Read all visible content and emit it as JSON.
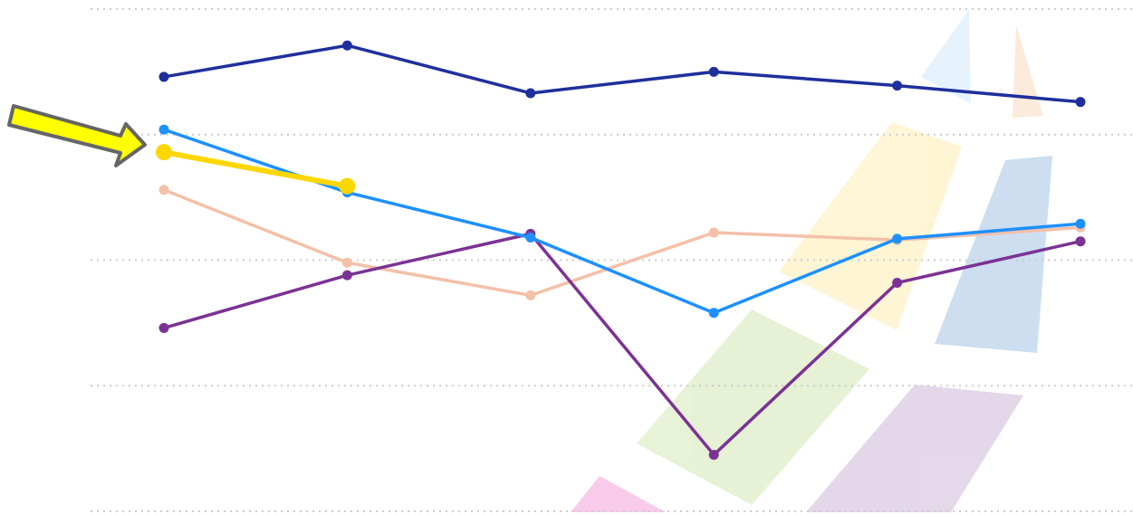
{
  "chart_data": {
    "type": "line",
    "categories": [
      null,
      null,
      null,
      null,
      null,
      null
    ],
    "ylim": [
      0,
      4
    ],
    "yticks": [
      0,
      1,
      2,
      3,
      4
    ],
    "grid": true,
    "series": [
      {
        "color": "#1f2f9c",
        "values": [
          3.46,
          3.71,
          3.33,
          3.5,
          3.39,
          3.26
        ]
      },
      {
        "color": "#f4c0a8",
        "values": [
          2.56,
          1.98,
          1.72,
          2.22,
          2.16,
          2.26
        ]
      },
      {
        "color": "#7b3294",
        "values": [
          1.46,
          1.88,
          2.21,
          0.45,
          1.82,
          2.15
        ]
      },
      {
        "color": "#1e90ff",
        "values": [
          3.04,
          2.54,
          2.18,
          1.58,
          2.17,
          2.29
        ]
      },
      {
        "color": "#ffd700",
        "values": [
          2.86,
          2.59,
          null,
          null,
          null,
          null
        ]
      }
    ]
  }
}
